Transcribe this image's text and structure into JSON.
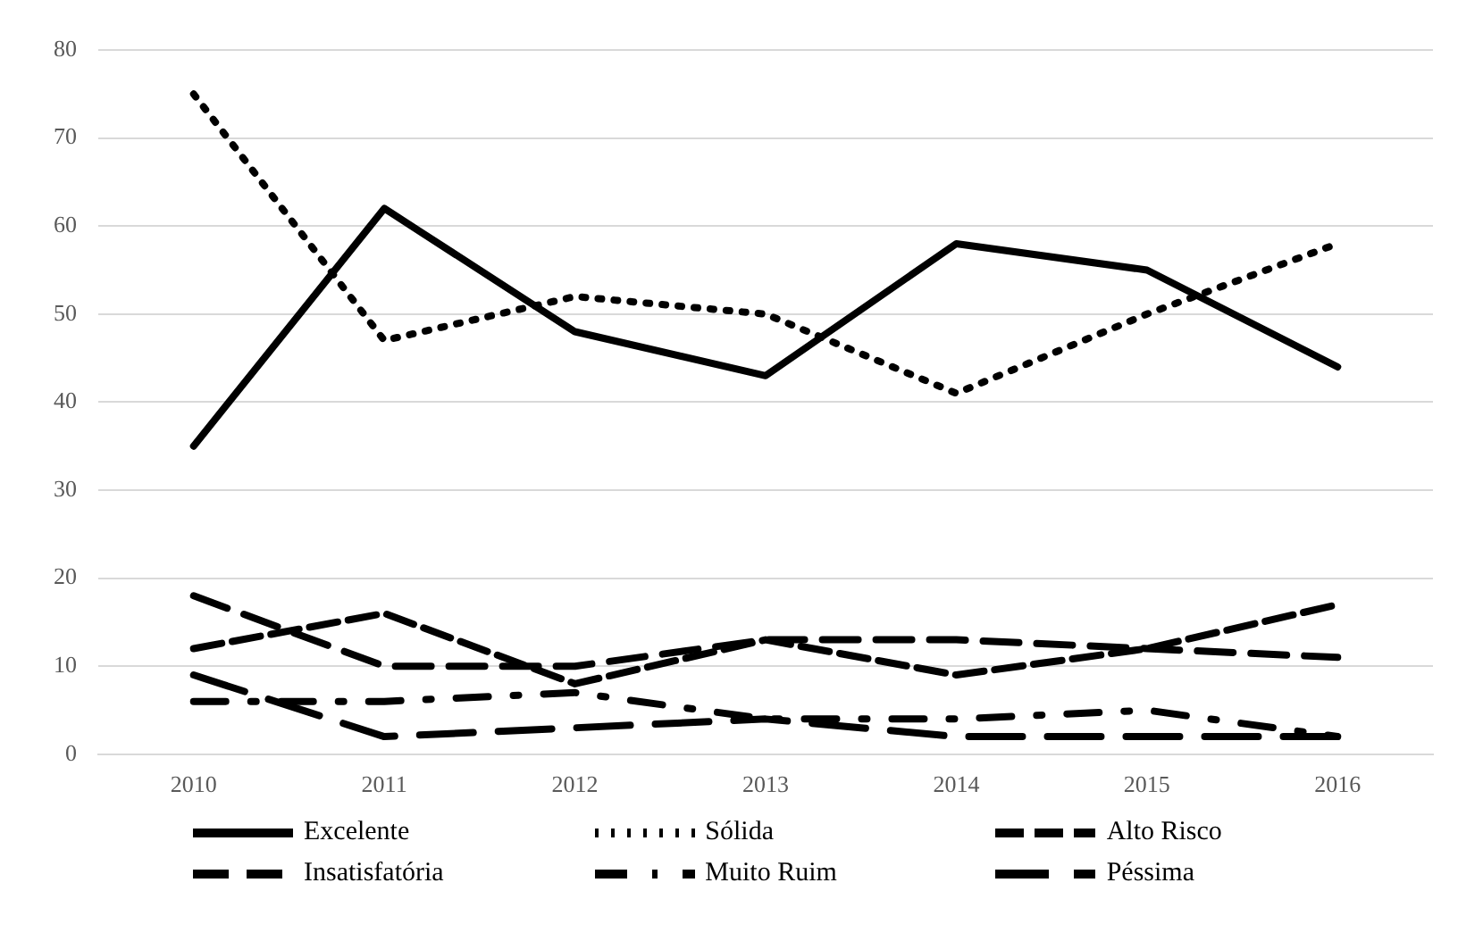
{
  "chart_data": {
    "type": "line",
    "categories": [
      "2010",
      "2011",
      "2012",
      "2013",
      "2014",
      "2015",
      "2016"
    ],
    "series": [
      {
        "name": "Excelente",
        "color": "#000000",
        "line_style": "solid",
        "values": [
          35,
          62,
          48,
          43,
          58,
          55,
          44
        ]
      },
      {
        "name": "Sólida",
        "color": "#000000",
        "line_style": "dotted",
        "values": [
          75,
          47,
          52,
          50,
          41,
          50,
          58
        ]
      },
      {
        "name": "Alto Risco",
        "color": "#000000",
        "line_style": "dashed",
        "values": [
          12,
          16,
          8,
          13,
          9,
          12,
          17
        ]
      },
      {
        "name": "Insatisfatória",
        "color": "#000000",
        "line_style": "dashed",
        "values": [
          18,
          10,
          10,
          13,
          13,
          12,
          11
        ]
      },
      {
        "name": "Muito Ruim",
        "color": "#000000",
        "line_style": "dashed",
        "values": [
          6,
          6,
          7,
          4,
          4,
          5,
          2
        ]
      },
      {
        "name": "Péssima",
        "color": "#000000",
        "line_style": "dashed",
        "values": [
          9,
          2,
          3,
          4,
          2,
          2,
          2
        ]
      }
    ],
    "ylim": [
      0,
      80
    ],
    "yticks": [
      0,
      10,
      20,
      30,
      40,
      50,
      60,
      70,
      80
    ],
    "grid": "y",
    "legend": "bottom",
    "marker": "none"
  }
}
